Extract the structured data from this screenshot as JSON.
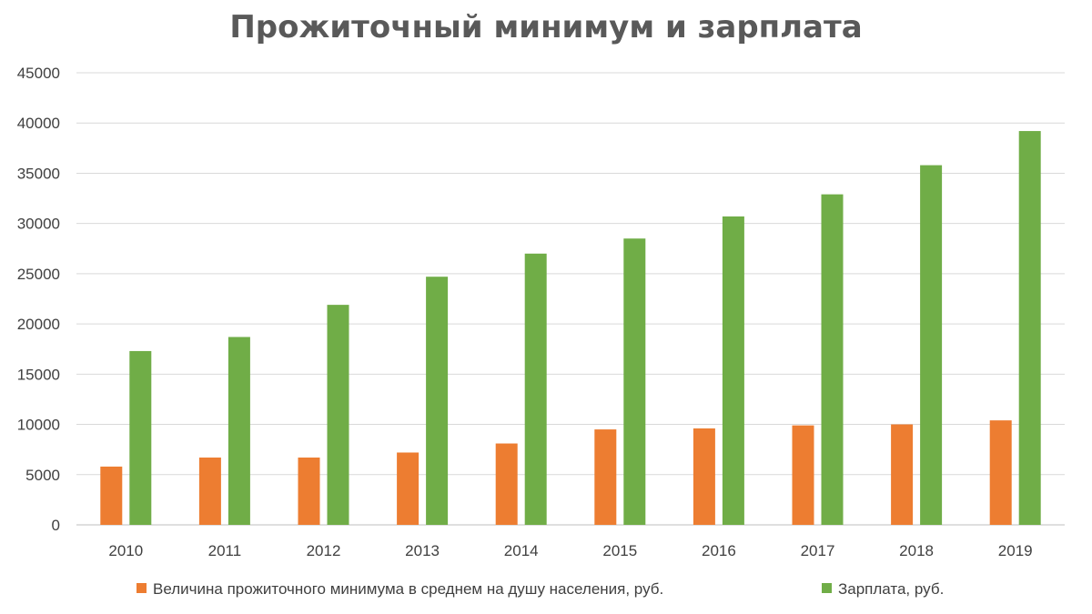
{
  "chart_data": {
    "type": "bar",
    "title": "Прожиточный минимум и зарплата",
    "xlabel": "",
    "ylabel": "",
    "categories": [
      "2010",
      "2011",
      "2012",
      "2013",
      "2014",
      "2015",
      "2016",
      "2017",
      "2018",
      "2019"
    ],
    "ylim": [
      0,
      45000
    ],
    "yticks": [
      "0",
      "5000",
      "10000",
      "15000",
      "20000",
      "25000",
      "30000",
      "35000",
      "40000",
      "45000"
    ],
    "grid": true,
    "legend_position": "bottom",
    "series": [
      {
        "name": "Величина прожиточного минимума в среднем на душу населения, руб.",
        "color": "#ed7d31",
        "values": [
          5800,
          6700,
          6700,
          7200,
          8100,
          9500,
          9600,
          9900,
          10000,
          10400
        ]
      },
      {
        "name": "Зарплата, руб.",
        "color": "#70ad47",
        "values": [
          17300,
          18700,
          21900,
          24700,
          27000,
          28500,
          30700,
          32900,
          35800,
          39200
        ]
      }
    ]
  }
}
